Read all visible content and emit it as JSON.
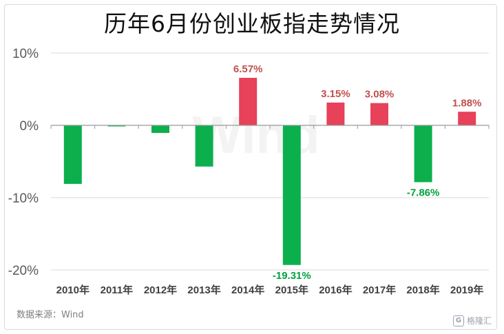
{
  "chart_data": {
    "type": "bar",
    "title": "历年6月份创业板指走势情况",
    "categories": [
      "2010年",
      "2011年",
      "2012年",
      "2013年",
      "2014年",
      "2015年",
      "2016年",
      "2017年",
      "2018年",
      "2019年"
    ],
    "values": [
      -8.1,
      -0.15,
      -1.05,
      -5.7,
      6.57,
      -19.31,
      3.15,
      3.08,
      -7.86,
      1.88
    ],
    "data_labels": [
      "",
      "",
      "",
      "",
      "6.57%",
      "-19.31%",
      "3.15%",
      "3.08%",
      "-7.86%",
      "1.88%"
    ],
    "y_ticks": [
      10,
      0,
      -10,
      -20
    ],
    "y_tick_labels": [
      "10%",
      "0%",
      "-10%",
      "-20%"
    ],
    "ylim": [
      -20,
      10
    ],
    "xlabel": "",
    "ylabel": "",
    "grid": true
  },
  "colors": {
    "positive": "#e8415a",
    "negative": "#0bb04d",
    "positive_label": "#c0504d",
    "negative_label": "#00a040",
    "grid": "#d9d9d9",
    "axis": "#999999"
  },
  "source": "数据来源：Wind",
  "watermark": "Wind",
  "brand": "格隆汇",
  "brand_icon": "gelonghui-logo-icon"
}
